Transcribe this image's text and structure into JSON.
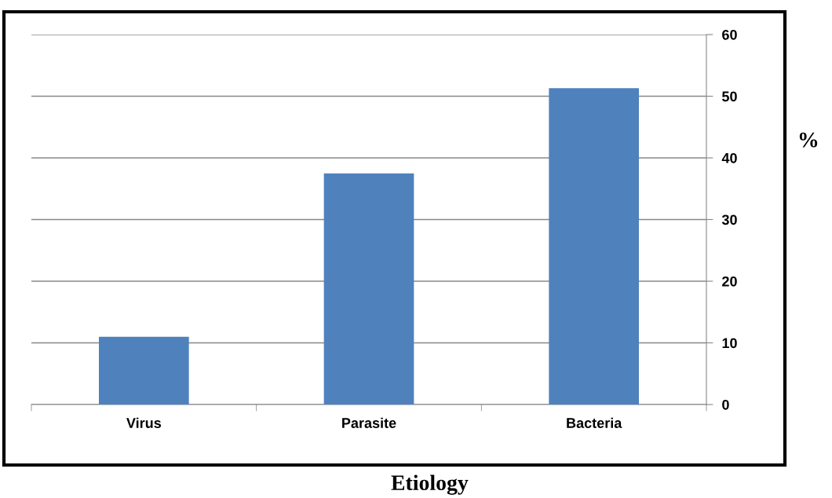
{
  "chart_data": {
    "type": "bar",
    "xlabel": "Etiology",
    "ylabel": "%",
    "categories": [
      "Virus",
      "Parasite",
      "Bacteria"
    ],
    "values": [
      11,
      37.5,
      51.3
    ],
    "color": "#4f81bd",
    "ylim": [
      0,
      60
    ],
    "yticks": [
      0,
      10,
      20,
      30,
      40,
      50,
      60
    ],
    "grid": "y"
  }
}
